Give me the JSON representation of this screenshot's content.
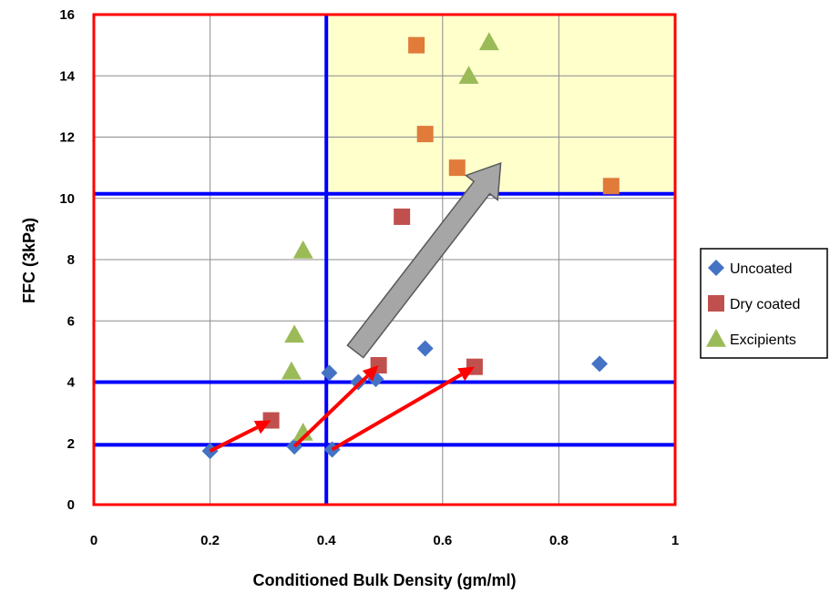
{
  "chart_data": {
    "type": "scatter",
    "xlabel": "Conditioned Bulk Density (gm/ml)",
    "ylabel": "FFC (3kPa)",
    "xlim": [
      0,
      1
    ],
    "ylim": [
      0,
      16
    ],
    "xticks": [
      "0",
      "0.2",
      "0.4",
      "0.6",
      "0.8",
      "1"
    ],
    "yticks": [
      "0",
      "2",
      "4",
      "6",
      "8",
      "10",
      "12",
      "14",
      "16"
    ],
    "grid": true,
    "legend_position": "right",
    "series": [
      {
        "name": "Uncoated",
        "marker": "diamond",
        "color": "#4472C4",
        "points": [
          {
            "x": 0.2,
            "y": 1.75
          },
          {
            "x": 0.345,
            "y": 1.9
          },
          {
            "x": 0.41,
            "y": 1.8
          },
          {
            "x": 0.405,
            "y": 4.3
          },
          {
            "x": 0.455,
            "y": 4.0
          },
          {
            "x": 0.485,
            "y": 4.1
          },
          {
            "x": 0.57,
            "y": 5.1
          },
          {
            "x": 0.87,
            "y": 4.6
          }
        ]
      },
      {
        "name": "Dry coated",
        "marker": "square",
        "color": "#C0504D",
        "points": [
          {
            "x": 0.305,
            "y": 2.75
          },
          {
            "x": 0.49,
            "y": 4.55
          },
          {
            "x": 0.655,
            "y": 4.5
          },
          {
            "x": 0.53,
            "y": 9.4
          }
        ]
      },
      {
        "name": "Excipients",
        "marker": "triangle",
        "color": "#9BBB59",
        "points": [
          {
            "x": 0.36,
            "y": 2.35
          },
          {
            "x": 0.34,
            "y": 4.35
          },
          {
            "x": 0.345,
            "y": 5.55
          },
          {
            "x": 0.36,
            "y": 8.3
          },
          {
            "x": 0.645,
            "y": 14.0
          },
          {
            "x": 0.68,
            "y": 15.1
          }
        ]
      },
      {
        "marker": "square",
        "color": "#E07B39",
        "points": [
          {
            "x": 0.555,
            "y": 15.0
          },
          {
            "x": 0.57,
            "y": 12.1
          },
          {
            "x": 0.625,
            "y": 11.0
          },
          {
            "x": 0.89,
            "y": 10.4
          }
        ]
      }
    ],
    "reference_lines": {
      "vertical": [
        0.4
      ],
      "horizontal": [
        1.95,
        4.0,
        10.15
      ],
      "color": "#0000FF"
    },
    "highlight_region": {
      "x": [
        0.4,
        1.0
      ],
      "y": [
        10.15,
        16.0
      ],
      "color": "#FFFFCC"
    },
    "frame_color": "#FF0000",
    "arrows": [
      {
        "from": [
          0.2,
          1.75
        ],
        "to": [
          0.305,
          2.75
        ],
        "color": "#FF0000"
      },
      {
        "from": [
          0.345,
          1.9
        ],
        "to": [
          0.49,
          4.55
        ],
        "color": "#FF0000"
      },
      {
        "from": [
          0.41,
          1.8
        ],
        "to": [
          0.655,
          4.5
        ],
        "color": "#FF0000"
      },
      {
        "from": [
          0.45,
          5.0
        ],
        "to": [
          0.7,
          11.15
        ],
        "color": "#A6A6A6",
        "style": "block"
      }
    ]
  }
}
